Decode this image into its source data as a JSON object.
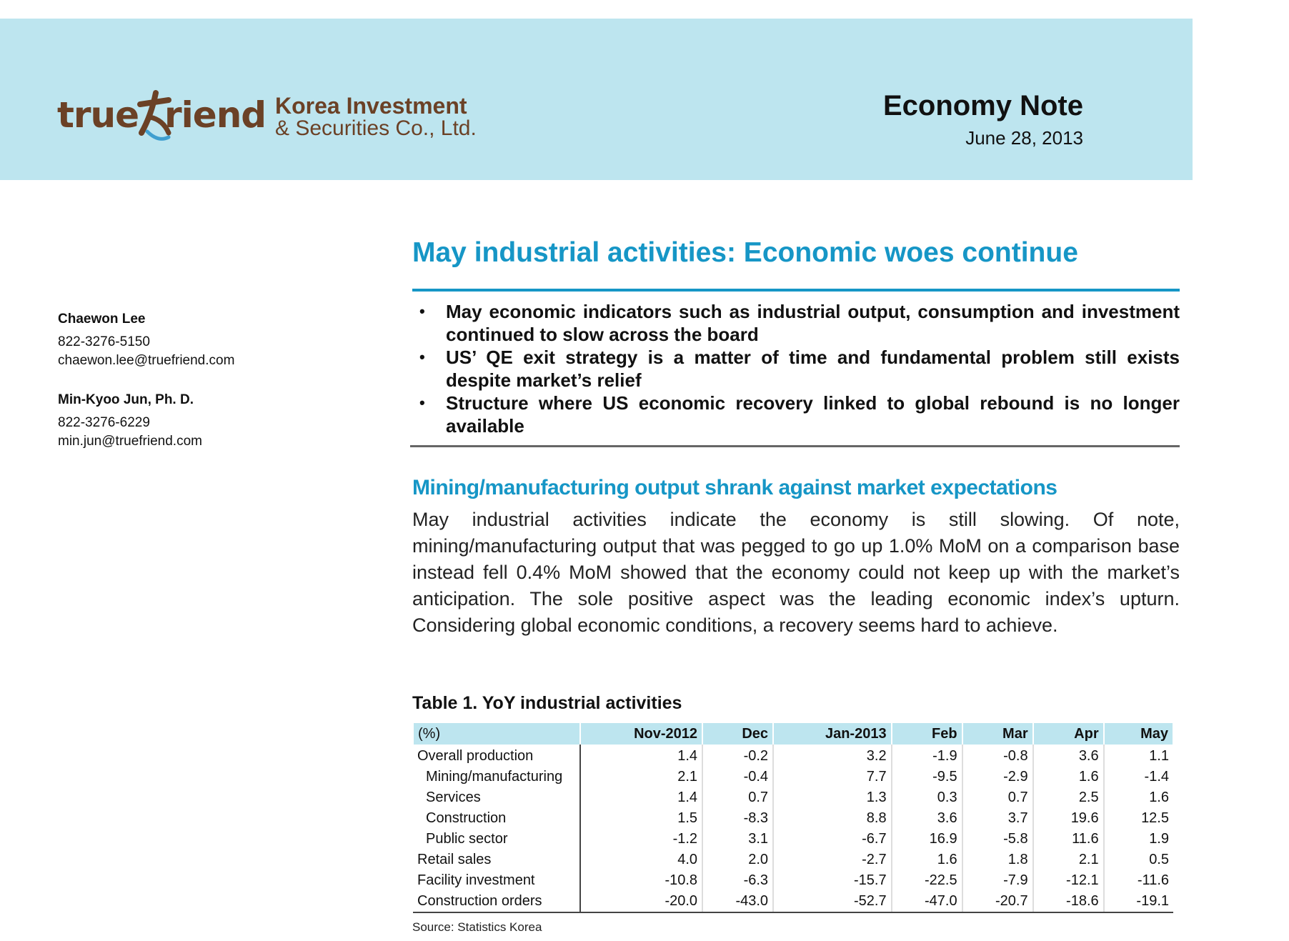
{
  "header": {
    "logo_text_left": "true",
    "logo_text_right": "riend",
    "company_line1": "Korea Investment",
    "company_line2": "& Securities Co., Ltd.",
    "doc_type": "Economy Note",
    "date": "June 28, 2013"
  },
  "analysts": [
    {
      "name": "Chaewon Lee",
      "phone": "822-3276-5150",
      "email": "chaewon.lee@truefriend.com"
    },
    {
      "name": "Min-Kyoo Jun, Ph. D.",
      "phone": "822-3276-6229",
      "email": "min.jun@truefriend.com"
    }
  ],
  "title": "May industrial activities: Economic woes continue",
  "bullets": [
    "May economic indicators such as industrial output, consumption and investment continued to slow across the board",
    "US’ QE exit strategy is a matter of time and fundamental problem still exists despite market’s relief",
    "Structure where US economic recovery linked to global rebound is no longer available"
  ],
  "section_heading": "Mining/manufacturing output shrank against market expectations",
  "paragraph": "May industrial activities indicate the economy is still slowing. Of note, mining/manufacturing output that was pegged to go up 1.0% MoM on a comparison base instead fell 0.4% MoM showed that the economy could not keep up with the market’s anticipation. The sole positive aspect was the leading economic index’s upturn. Considering global economic conditions, a recovery seems hard to achieve.",
  "table": {
    "title": "Table 1. YoY industrial activities",
    "columns": [
      "(%)",
      "Nov-2012",
      "Dec",
      "Jan-2013",
      "Feb",
      "Mar",
      "Apr",
      "May"
    ],
    "rows": [
      {
        "label": "Overall production",
        "values": [
          "1.4",
          "-0.2",
          "3.2",
          "-1.9",
          "-0.8",
          "3.6",
          "1.1"
        ]
      },
      {
        "label": "Mining/manufacturing",
        "values": [
          "2.1",
          "-0.4",
          "7.7",
          "-9.5",
          "-2.9",
          "1.6",
          "-1.4"
        ]
      },
      {
        "label": "Services",
        "values": [
          "1.4",
          "0.7",
          "1.3",
          "0.3",
          "0.7",
          "2.5",
          "1.6"
        ]
      },
      {
        "label": "Construction",
        "values": [
          "1.5",
          "-8.3",
          "8.8",
          "3.6",
          "3.7",
          "19.6",
          "12.5"
        ]
      },
      {
        "label": "Public sector",
        "values": [
          "-1.2",
          "3.1",
          "-6.7",
          "16.9",
          "-5.8",
          "11.6",
          "1.9"
        ]
      },
      {
        "label": "Retail sales",
        "values": [
          "4.0",
          "2.0",
          "-2.7",
          "1.6",
          "1.8",
          "2.1",
          "0.5"
        ]
      },
      {
        "label": "Facility investment",
        "values": [
          "-10.8",
          "-6.3",
          "-15.7",
          "-22.5",
          "-7.9",
          "-12.1",
          "-11.6"
        ]
      },
      {
        "label": "Construction orders",
        "values": [
          "-20.0",
          "-43.0",
          "-52.7",
          "-47.0",
          "-20.7",
          "-18.6",
          "-19.1"
        ]
      }
    ],
    "source": "Source: Statistics Korea"
  }
}
